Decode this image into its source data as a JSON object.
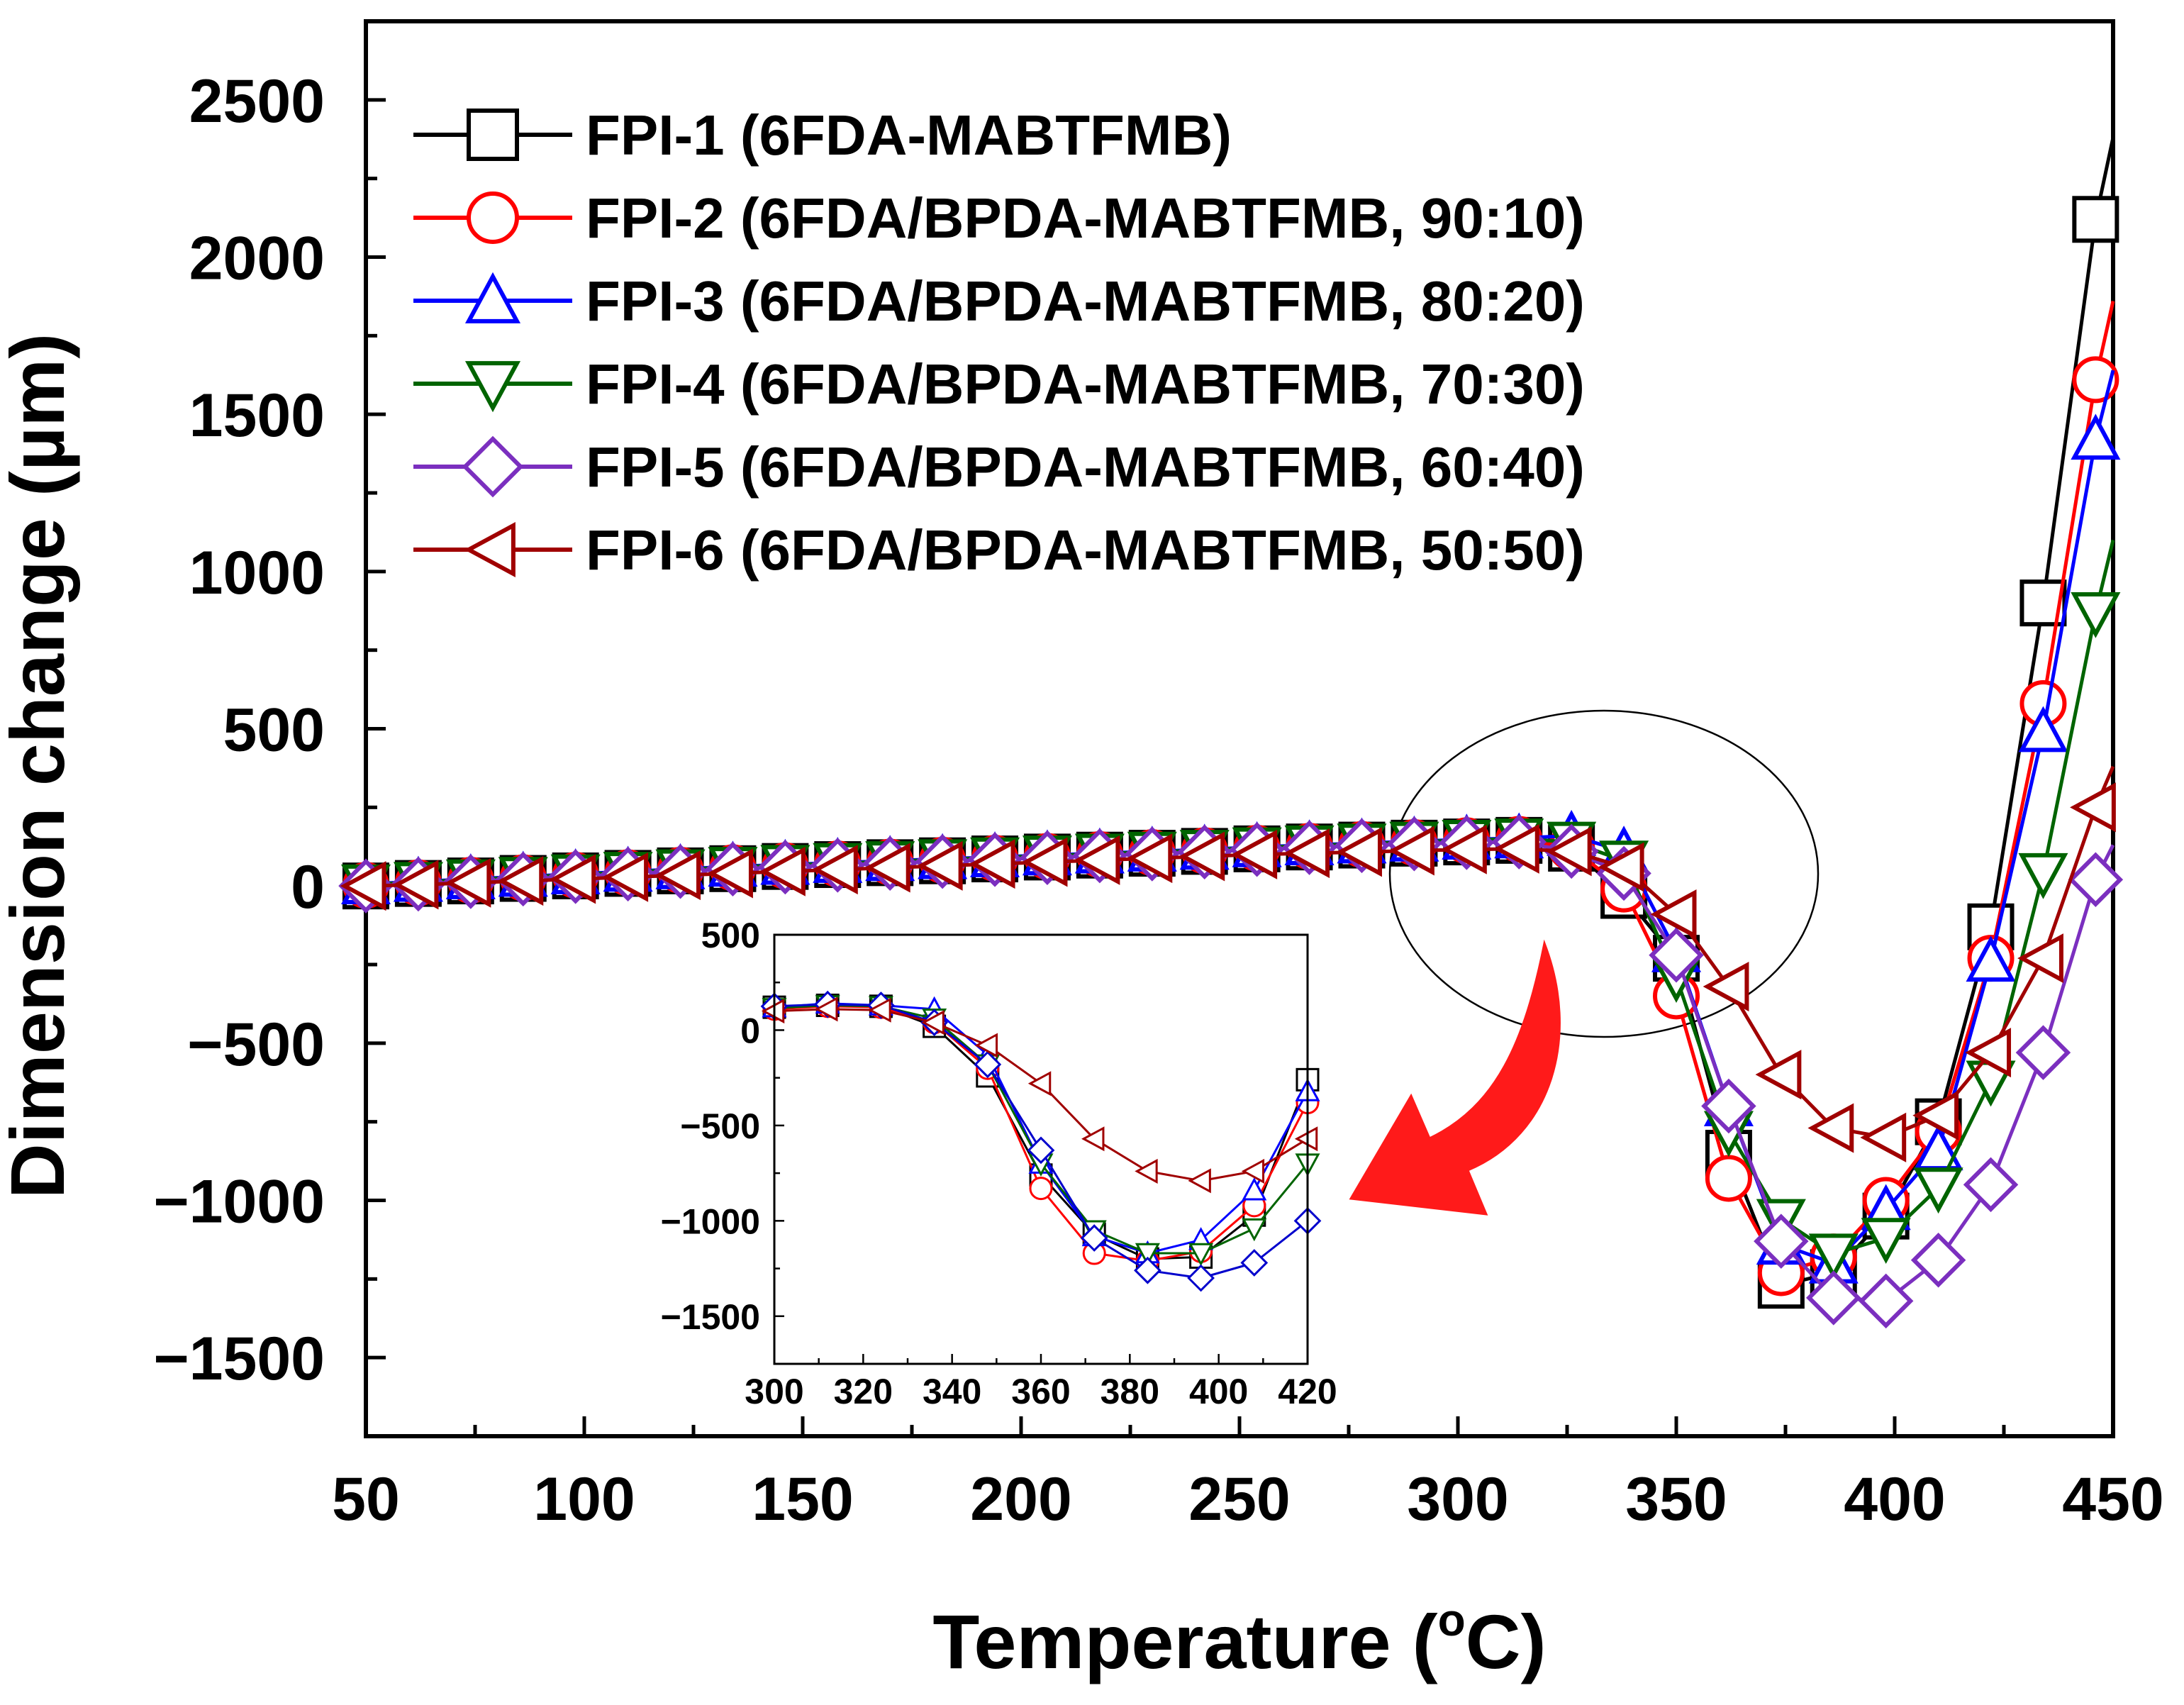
{
  "chart_data": [
    {
      "id": "main",
      "type": "line",
      "title": "",
      "xlabel": "Temperature (°C)",
      "xlabel_parts": {
        "main": "Temperature (",
        "sup": "o",
        "end": "C)"
      },
      "ylabel": "Dimension change (µm)",
      "xlim": [
        50,
        450
      ],
      "ylim": [
        -1750,
        2750
      ],
      "xticks": [
        50,
        100,
        150,
        200,
        250,
        300,
        350,
        400,
        450
      ],
      "yticks": [
        -1500,
        -1000,
        -500,
        0,
        500,
        1000,
        1500,
        2000,
        2500
      ],
      "xtick_labels": [
        "50",
        "100",
        "150",
        "200",
        "250",
        "300",
        "350",
        "400",
        "450"
      ],
      "ytick_labels": [
        "−1500",
        "−1000",
        "−500",
        "0",
        "500",
        "1000",
        "1500",
        "2000",
        "2500"
      ],
      "legend_position": "top-left",
      "annotation": "ellipse around 330–340 °C region with red arrow pointing to inset",
      "series": [
        {
          "name": "FPI-1 (6FDA-MABTFMB)",
          "color": "#000000",
          "marker": "square",
          "x": [
            50,
            62,
            74,
            86,
            98,
            110,
            122,
            134,
            146,
            158,
            170,
            182,
            194,
            206,
            218,
            230,
            242,
            254,
            266,
            278,
            290,
            302,
            314,
            326,
            338,
            350,
            362,
            374,
            386,
            398,
            410,
            422,
            434,
            446,
            450
          ],
          "y": [
            0,
            8,
            16,
            24,
            32,
            40,
            48,
            55,
            62,
            68,
            74,
            80,
            86,
            92,
            98,
            104,
            110,
            118,
            124,
            130,
            136,
            140,
            145,
            120,
            -30,
            -230,
            -850,
            -1270,
            -1230,
            -1050,
            -750,
            -130,
            900,
            2120,
            2380
          ]
        },
        {
          "name": "FPI-2 (6FDA/BPDA-MABTFMB, 90:10)",
          "color": "#ff0000",
          "marker": "circle",
          "x": [
            50,
            62,
            74,
            86,
            98,
            110,
            122,
            134,
            146,
            158,
            170,
            182,
            194,
            206,
            218,
            230,
            242,
            254,
            266,
            278,
            290,
            302,
            314,
            326,
            338,
            350,
            362,
            374,
            386,
            398,
            410,
            422,
            434,
            446,
            450
          ],
          "y": [
            2,
            10,
            18,
            26,
            34,
            42,
            50,
            58,
            64,
            70,
            76,
            82,
            88,
            94,
            100,
            106,
            112,
            120,
            126,
            132,
            138,
            144,
            148,
            122,
            -10,
            -350,
            -930,
            -1230,
            -1180,
            -1000,
            -780,
            -230,
            580,
            1610,
            1860
          ]
        },
        {
          "name": "FPI-3 (6FDA/BPDA-MABTFMB, 80:20)",
          "color": "#0000ff",
          "marker": "triangle-up",
          "x": [
            50,
            62,
            74,
            86,
            98,
            110,
            122,
            134,
            146,
            158,
            170,
            182,
            194,
            206,
            218,
            230,
            242,
            254,
            266,
            278,
            290,
            302,
            314,
            326,
            338,
            350,
            362,
            374,
            386,
            398,
            410,
            422,
            434,
            446,
            450
          ],
          "y": [
            6,
            14,
            22,
            30,
            38,
            46,
            54,
            62,
            68,
            74,
            80,
            86,
            92,
            98,
            104,
            110,
            116,
            124,
            130,
            136,
            142,
            148,
            152,
            160,
            110,
            -210,
            -700,
            -1140,
            -1200,
            -1030,
            -840,
            -240,
            490,
            1420,
            1640
          ]
        },
        {
          "name": "FPI-4 (6FDA/BPDA-MABTFMB, 70:30)",
          "color": "#006400",
          "marker": "triangle-down",
          "x": [
            50,
            62,
            74,
            86,
            98,
            110,
            122,
            134,
            146,
            158,
            170,
            182,
            194,
            206,
            218,
            230,
            242,
            254,
            266,
            278,
            290,
            302,
            314,
            326,
            338,
            350,
            362,
            374,
            386,
            398,
            410,
            422,
            434,
            446,
            450
          ],
          "y": [
            4,
            12,
            20,
            28,
            36,
            44,
            52,
            60,
            66,
            72,
            78,
            84,
            90,
            96,
            102,
            108,
            114,
            122,
            128,
            134,
            140,
            146,
            150,
            140,
            80,
            -290,
            -780,
            -1060,
            -1170,
            -1120,
            -960,
            -620,
            40,
            870,
            1100
          ]
        },
        {
          "name": "FPI-5 (6FDA/BPDA-MABTFMB, 60:40)",
          "color": "#7b2fbf",
          "marker": "diamond",
          "x": [
            50,
            62,
            74,
            86,
            98,
            110,
            122,
            134,
            146,
            158,
            170,
            182,
            194,
            206,
            218,
            230,
            242,
            254,
            266,
            278,
            290,
            302,
            314,
            326,
            338,
            350,
            362,
            374,
            386,
            398,
            410,
            422,
            434,
            446,
            450
          ],
          "y": [
            0,
            6,
            14,
            22,
            30,
            38,
            46,
            54,
            60,
            66,
            72,
            78,
            84,
            90,
            96,
            102,
            108,
            116,
            122,
            128,
            134,
            138,
            140,
            110,
            40,
            -220,
            -700,
            -1130,
            -1310,
            -1320,
            -1190,
            -950,
            -530,
            20,
            130
          ]
        },
        {
          "name": "FPI-6 (6FDA/BPDA-MABTFMB, 50:50)",
          "color": "#a00000",
          "marker": "triangle-left",
          "x": [
            50,
            62,
            74,
            86,
            98,
            110,
            122,
            134,
            146,
            158,
            170,
            182,
            194,
            206,
            218,
            230,
            242,
            254,
            266,
            278,
            290,
            302,
            314,
            326,
            338,
            350,
            362,
            374,
            386,
            398,
            410,
            422,
            434,
            446,
            450
          ],
          "y": [
            0,
            4,
            10,
            16,
            22,
            28,
            34,
            40,
            46,
            52,
            58,
            64,
            70,
            76,
            82,
            88,
            94,
            100,
            104,
            108,
            112,
            116,
            118,
            110,
            60,
            -90,
            -320,
            -600,
            -770,
            -800,
            -730,
            -530,
            -230,
            250,
            380
          ]
        }
      ]
    },
    {
      "id": "inset",
      "type": "line",
      "title": "",
      "xlabel": "",
      "ylabel": "",
      "xlim": [
        300,
        420
      ],
      "ylim": [
        -1750,
        500
      ],
      "xticks": [
        300,
        320,
        340,
        360,
        380,
        400,
        420
      ],
      "yticks": [
        -1500,
        -1000,
        -500,
        0,
        500
      ],
      "xtick_labels": [
        "300",
        "320",
        "340",
        "360",
        "380",
        "400",
        "420"
      ],
      "ytick_labels": [
        "−1500",
        "−1000",
        "−500",
        "0",
        "500"
      ],
      "series": [
        {
          "name": "FPI-1",
          "color": "#000000",
          "marker": "square",
          "x": [
            300,
            312,
            324,
            336,
            348,
            360,
            372,
            384,
            396,
            408,
            420
          ],
          "y": [
            120,
            130,
            125,
            20,
            -240,
            -760,
            -1070,
            -1200,
            -1190,
            -970,
            -260
          ]
        },
        {
          "name": "FPI-2",
          "color": "#ff0000",
          "marker": "circle",
          "x": [
            300,
            312,
            324,
            336,
            348,
            360,
            372,
            384,
            396,
            408,
            420
          ],
          "y": [
            110,
            125,
            120,
            40,
            -200,
            -830,
            -1170,
            -1210,
            -1160,
            -920,
            -380
          ]
        },
        {
          "name": "FPI-3",
          "color": "#0000ff",
          "marker": "triangle-up",
          "x": [
            300,
            312,
            324,
            336,
            348,
            360,
            372,
            384,
            396,
            408,
            420
          ],
          "y": [
            120,
            140,
            130,
            110,
            -130,
            -700,
            -1080,
            -1170,
            -1100,
            -840,
            -320
          ]
        },
        {
          "name": "FPI-4",
          "color": "#006400",
          "marker": "triangle-down",
          "x": [
            300,
            312,
            324,
            336,
            348,
            360,
            372,
            384,
            396,
            408,
            420
          ],
          "y": [
            115,
            130,
            125,
            60,
            -180,
            -700,
            -1050,
            -1170,
            -1170,
            -1040,
            -700
          ]
        },
        {
          "name": "FPI-5",
          "color": "#0000cc",
          "marker": "diamond",
          "x": [
            300,
            312,
            324,
            336,
            348,
            360,
            372,
            384,
            396,
            408,
            420
          ],
          "y": [
            125,
            135,
            130,
            40,
            -180,
            -630,
            -1090,
            -1260,
            -1300,
            -1220,
            -1000
          ]
        },
        {
          "name": "FPI-6",
          "color": "#a00000",
          "marker": "triangle-left",
          "x": [
            300,
            312,
            324,
            336,
            348,
            360,
            372,
            384,
            396,
            408,
            420
          ],
          "y": [
            100,
            110,
            105,
            40,
            -80,
            -280,
            -570,
            -740,
            -790,
            -740,
            -570
          ]
        }
      ]
    }
  ]
}
